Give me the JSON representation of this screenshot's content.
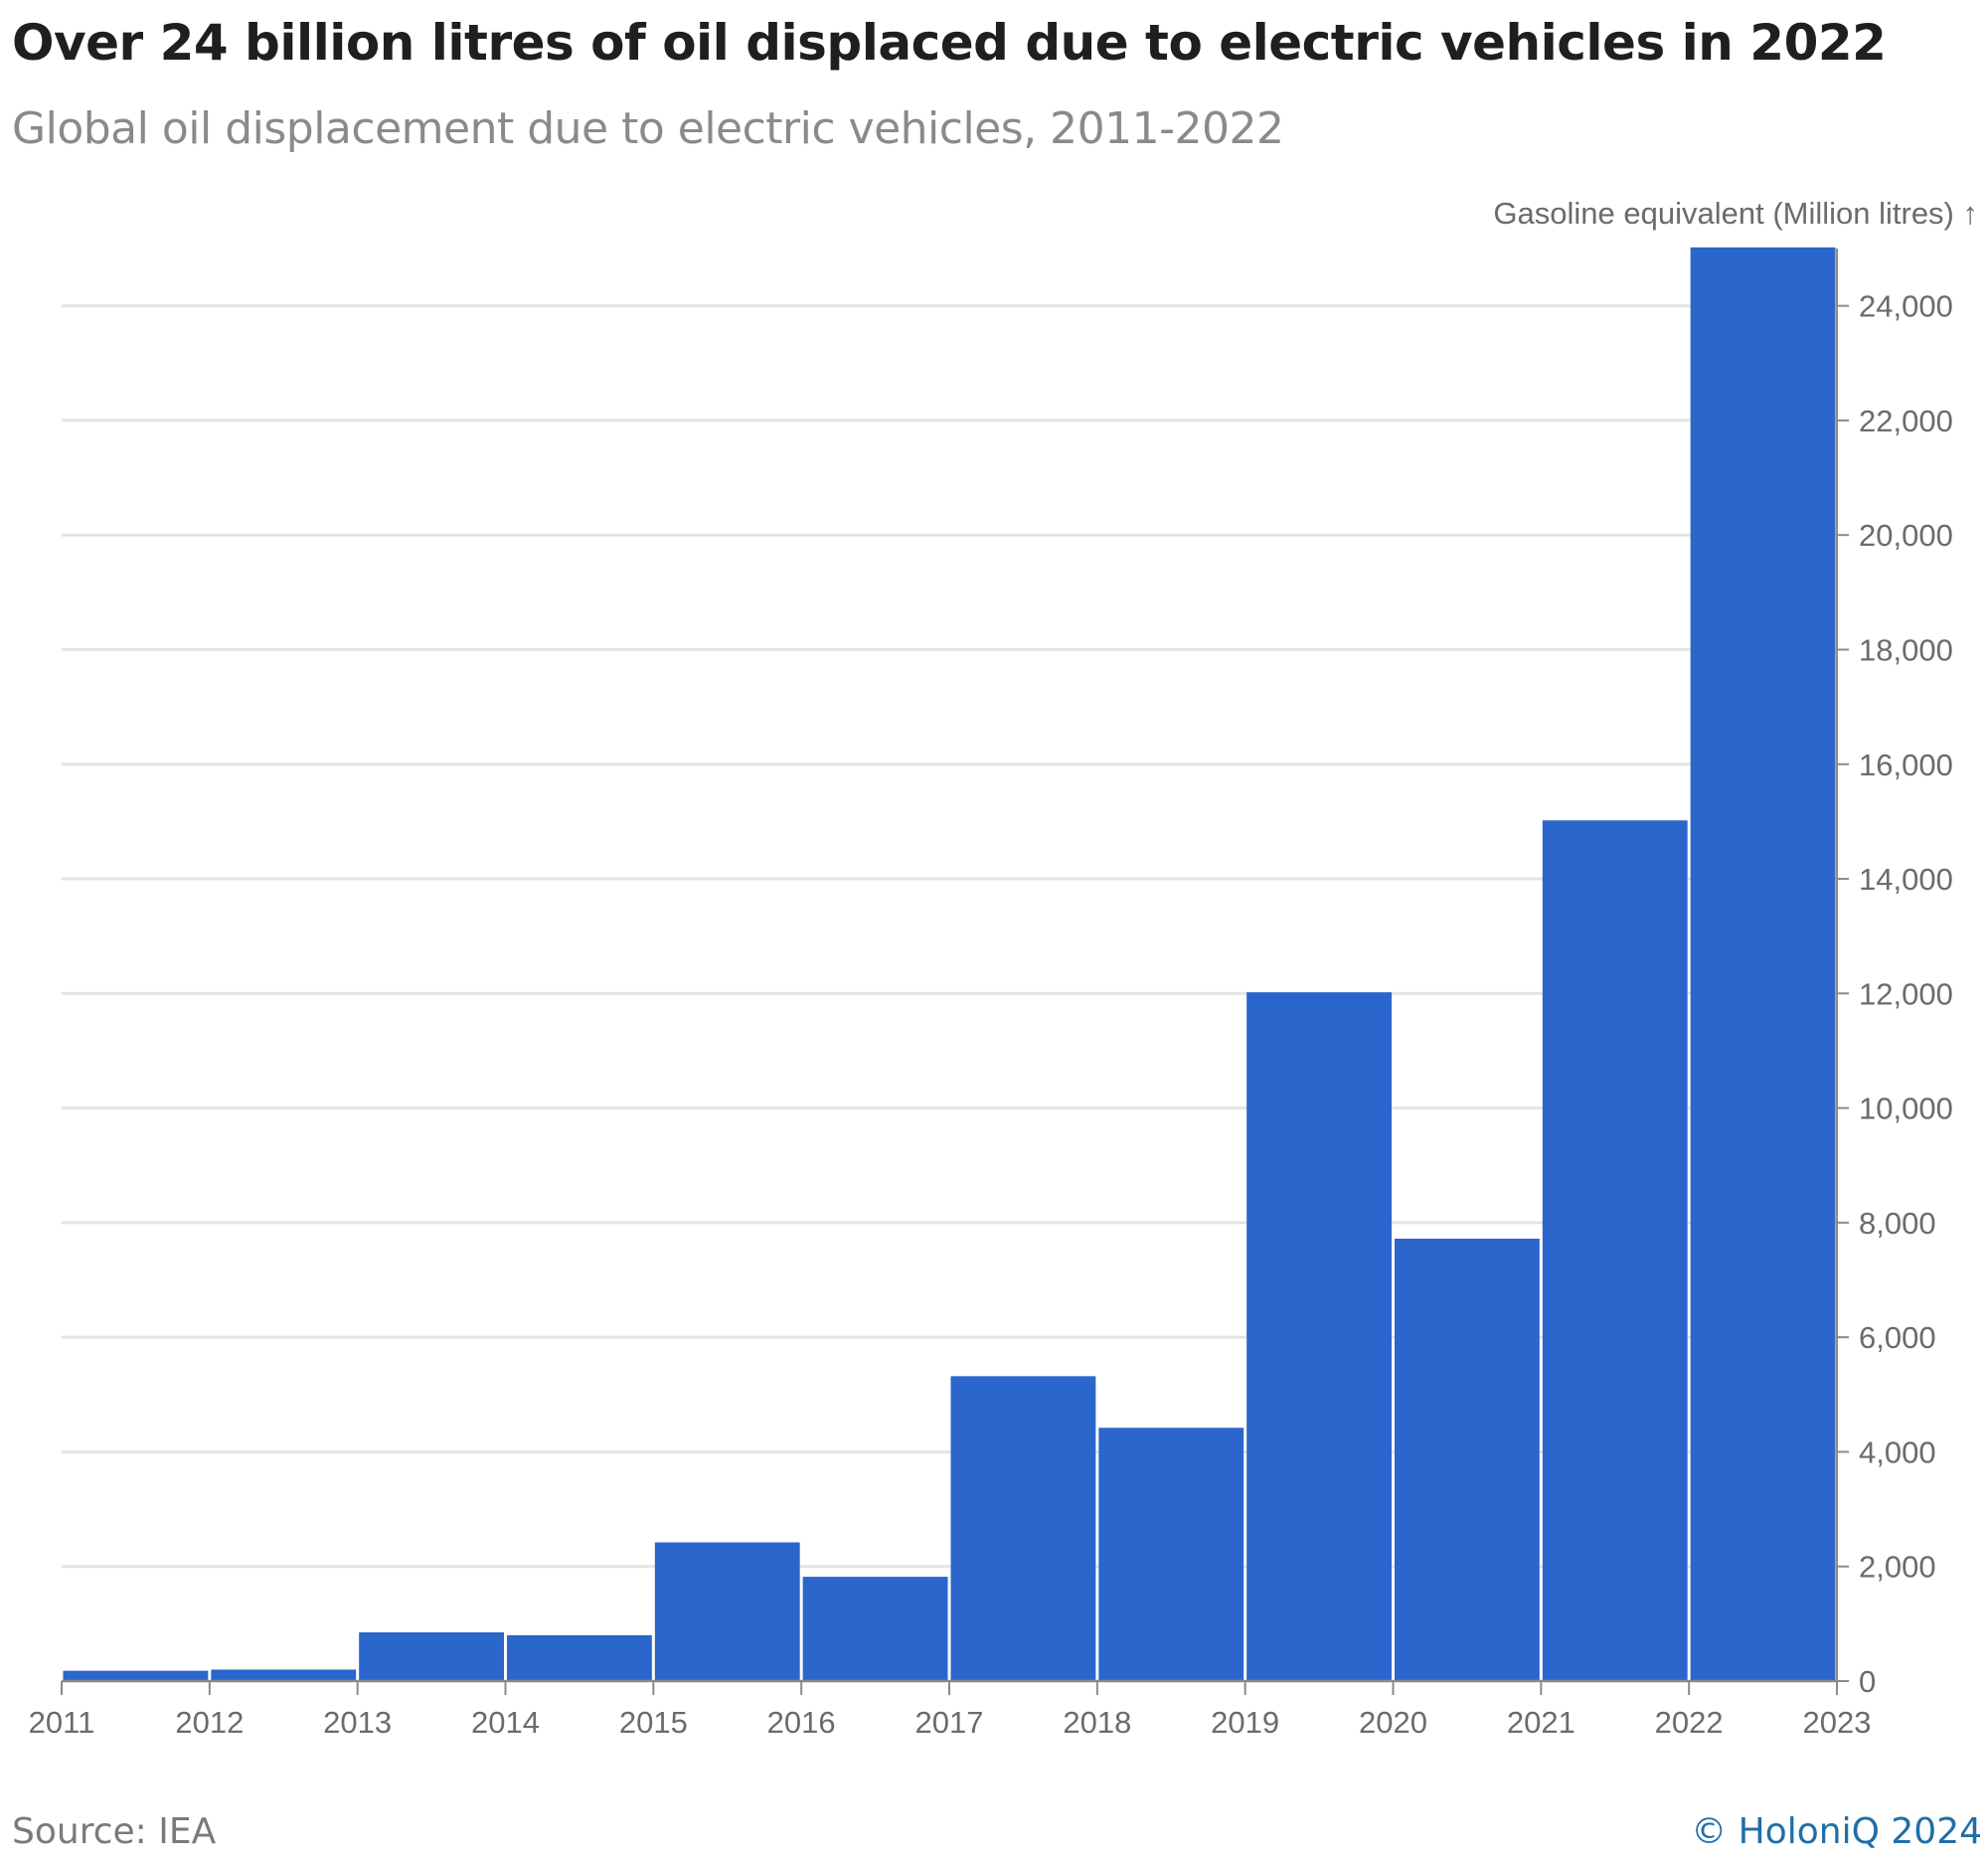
{
  "title": "Over 24 billion litres of oil displaced due to electric vehicles in 2022",
  "subtitle": "Global oil displacement due to electric vehicles, 2011-2022",
  "footer": {
    "source": "Source: IEA",
    "credit": "© HoloniQ 2024"
  },
  "colors": {
    "bar": "#2a66cc",
    "grid": "#e4e4e4",
    "axis": "#8a8a8a",
    "text": "#6b6b6b"
  },
  "chart_data": {
    "type": "bar",
    "ylabel": "Gasoline equivalent (Million litres) ↑",
    "ylim": [
      0,
      25000
    ],
    "yticks": [
      0,
      2000,
      4000,
      6000,
      8000,
      10000,
      12000,
      14000,
      16000,
      18000,
      20000,
      22000,
      24000
    ],
    "ytick_labels": [
      "0",
      "2,000",
      "4,000",
      "6,000",
      "8,000",
      "10,000",
      "12,000",
      "14,000",
      "16,000",
      "18,000",
      "20,000",
      "22,000",
      "24,000"
    ],
    "xlim": [
      2011,
      2023
    ],
    "xticks": [
      "2011",
      "2012",
      "2013",
      "2014",
      "2015",
      "2016",
      "2017",
      "2018",
      "2019",
      "2020",
      "2021",
      "2022",
      "2023"
    ],
    "bins": [
      {
        "x0": 2011,
        "x1": 2012,
        "value": 180
      },
      {
        "x0": 2012,
        "x1": 2013,
        "value": 200
      },
      {
        "x0": 2013,
        "x1": 2014,
        "value": 850
      },
      {
        "x0": 2014,
        "x1": 2015,
        "value": 800
      },
      {
        "x0": 2015,
        "x1": 2016,
        "value": 2420
      },
      {
        "x0": 2016,
        "x1": 2017,
        "value": 1820
      },
      {
        "x0": 2017,
        "x1": 2018,
        "value": 5320
      },
      {
        "x0": 2018,
        "x1": 2019,
        "value": 4420
      },
      {
        "x0": 2019,
        "x1": 2020,
        "value": 12020
      },
      {
        "x0": 2020,
        "x1": 2021,
        "value": 7720
      },
      {
        "x0": 2021,
        "x1": 2022,
        "value": 15020
      },
      {
        "x0": 2022,
        "x1": 2023,
        "value": 25020
      }
    ],
    "grid": true,
    "y_axis_position": "right"
  }
}
